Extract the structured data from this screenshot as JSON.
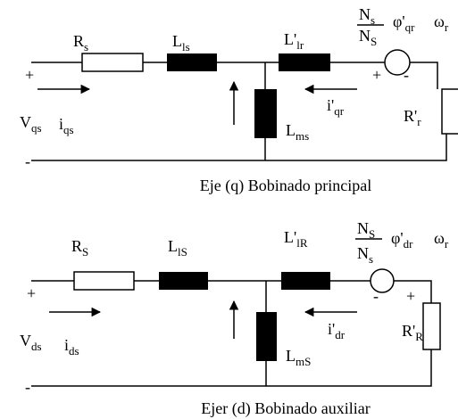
{
  "q": {
    "rs": {
      "t": "R",
      "s": "s"
    },
    "lls": {
      "t": "L",
      "s": "ls"
    },
    "llr": {
      "t": "L'",
      "s": "lr"
    },
    "num": {
      "t": "N",
      "s": "s"
    },
    "den": {
      "t": "N",
      "s": "S"
    },
    "phi": {
      "t": "φ'",
      "s": "qr"
    },
    "omega": {
      "t": "ω",
      "s": "r"
    },
    "plus_l": "+",
    "minus_l": "-",
    "plus_r": "+",
    "minus_r": "-",
    "v": {
      "t": "V",
      "s": "qs"
    },
    "i": {
      "t": "i",
      "s": "qs"
    },
    "ir": {
      "t": "i'",
      "s": "qr"
    },
    "lm": {
      "t": "L",
      "s": "ms"
    },
    "rr": {
      "t": "R'",
      "s": "r"
    },
    "caption": "Eje (q) Bobinado principal"
  },
  "d": {
    "rs": {
      "t": "R",
      "s": "S"
    },
    "lls": {
      "t": "L",
      "s": "lS"
    },
    "llr": {
      "t": "L'",
      "s": "lR"
    },
    "num": {
      "t": "N",
      "s": "S"
    },
    "den": {
      "t": "N",
      "s": "s"
    },
    "phi": {
      "t": "φ'",
      "s": "dr"
    },
    "omega": {
      "t": "ω",
      "s": "r"
    },
    "plus_l": "+",
    "minus_l": "-",
    "plus_r": "+",
    "minus_r": "-",
    "v": {
      "t": "V",
      "s": "ds"
    },
    "i": {
      "t": "i",
      "s": "ds"
    },
    "ir": {
      "t": "i'",
      "s": "dr"
    },
    "lm": {
      "t": "L",
      "s": "mS"
    },
    "rr": {
      "t": "R'",
      "s": "R"
    },
    "caption": "Ejer (d) Bobinado auxiliar"
  }
}
